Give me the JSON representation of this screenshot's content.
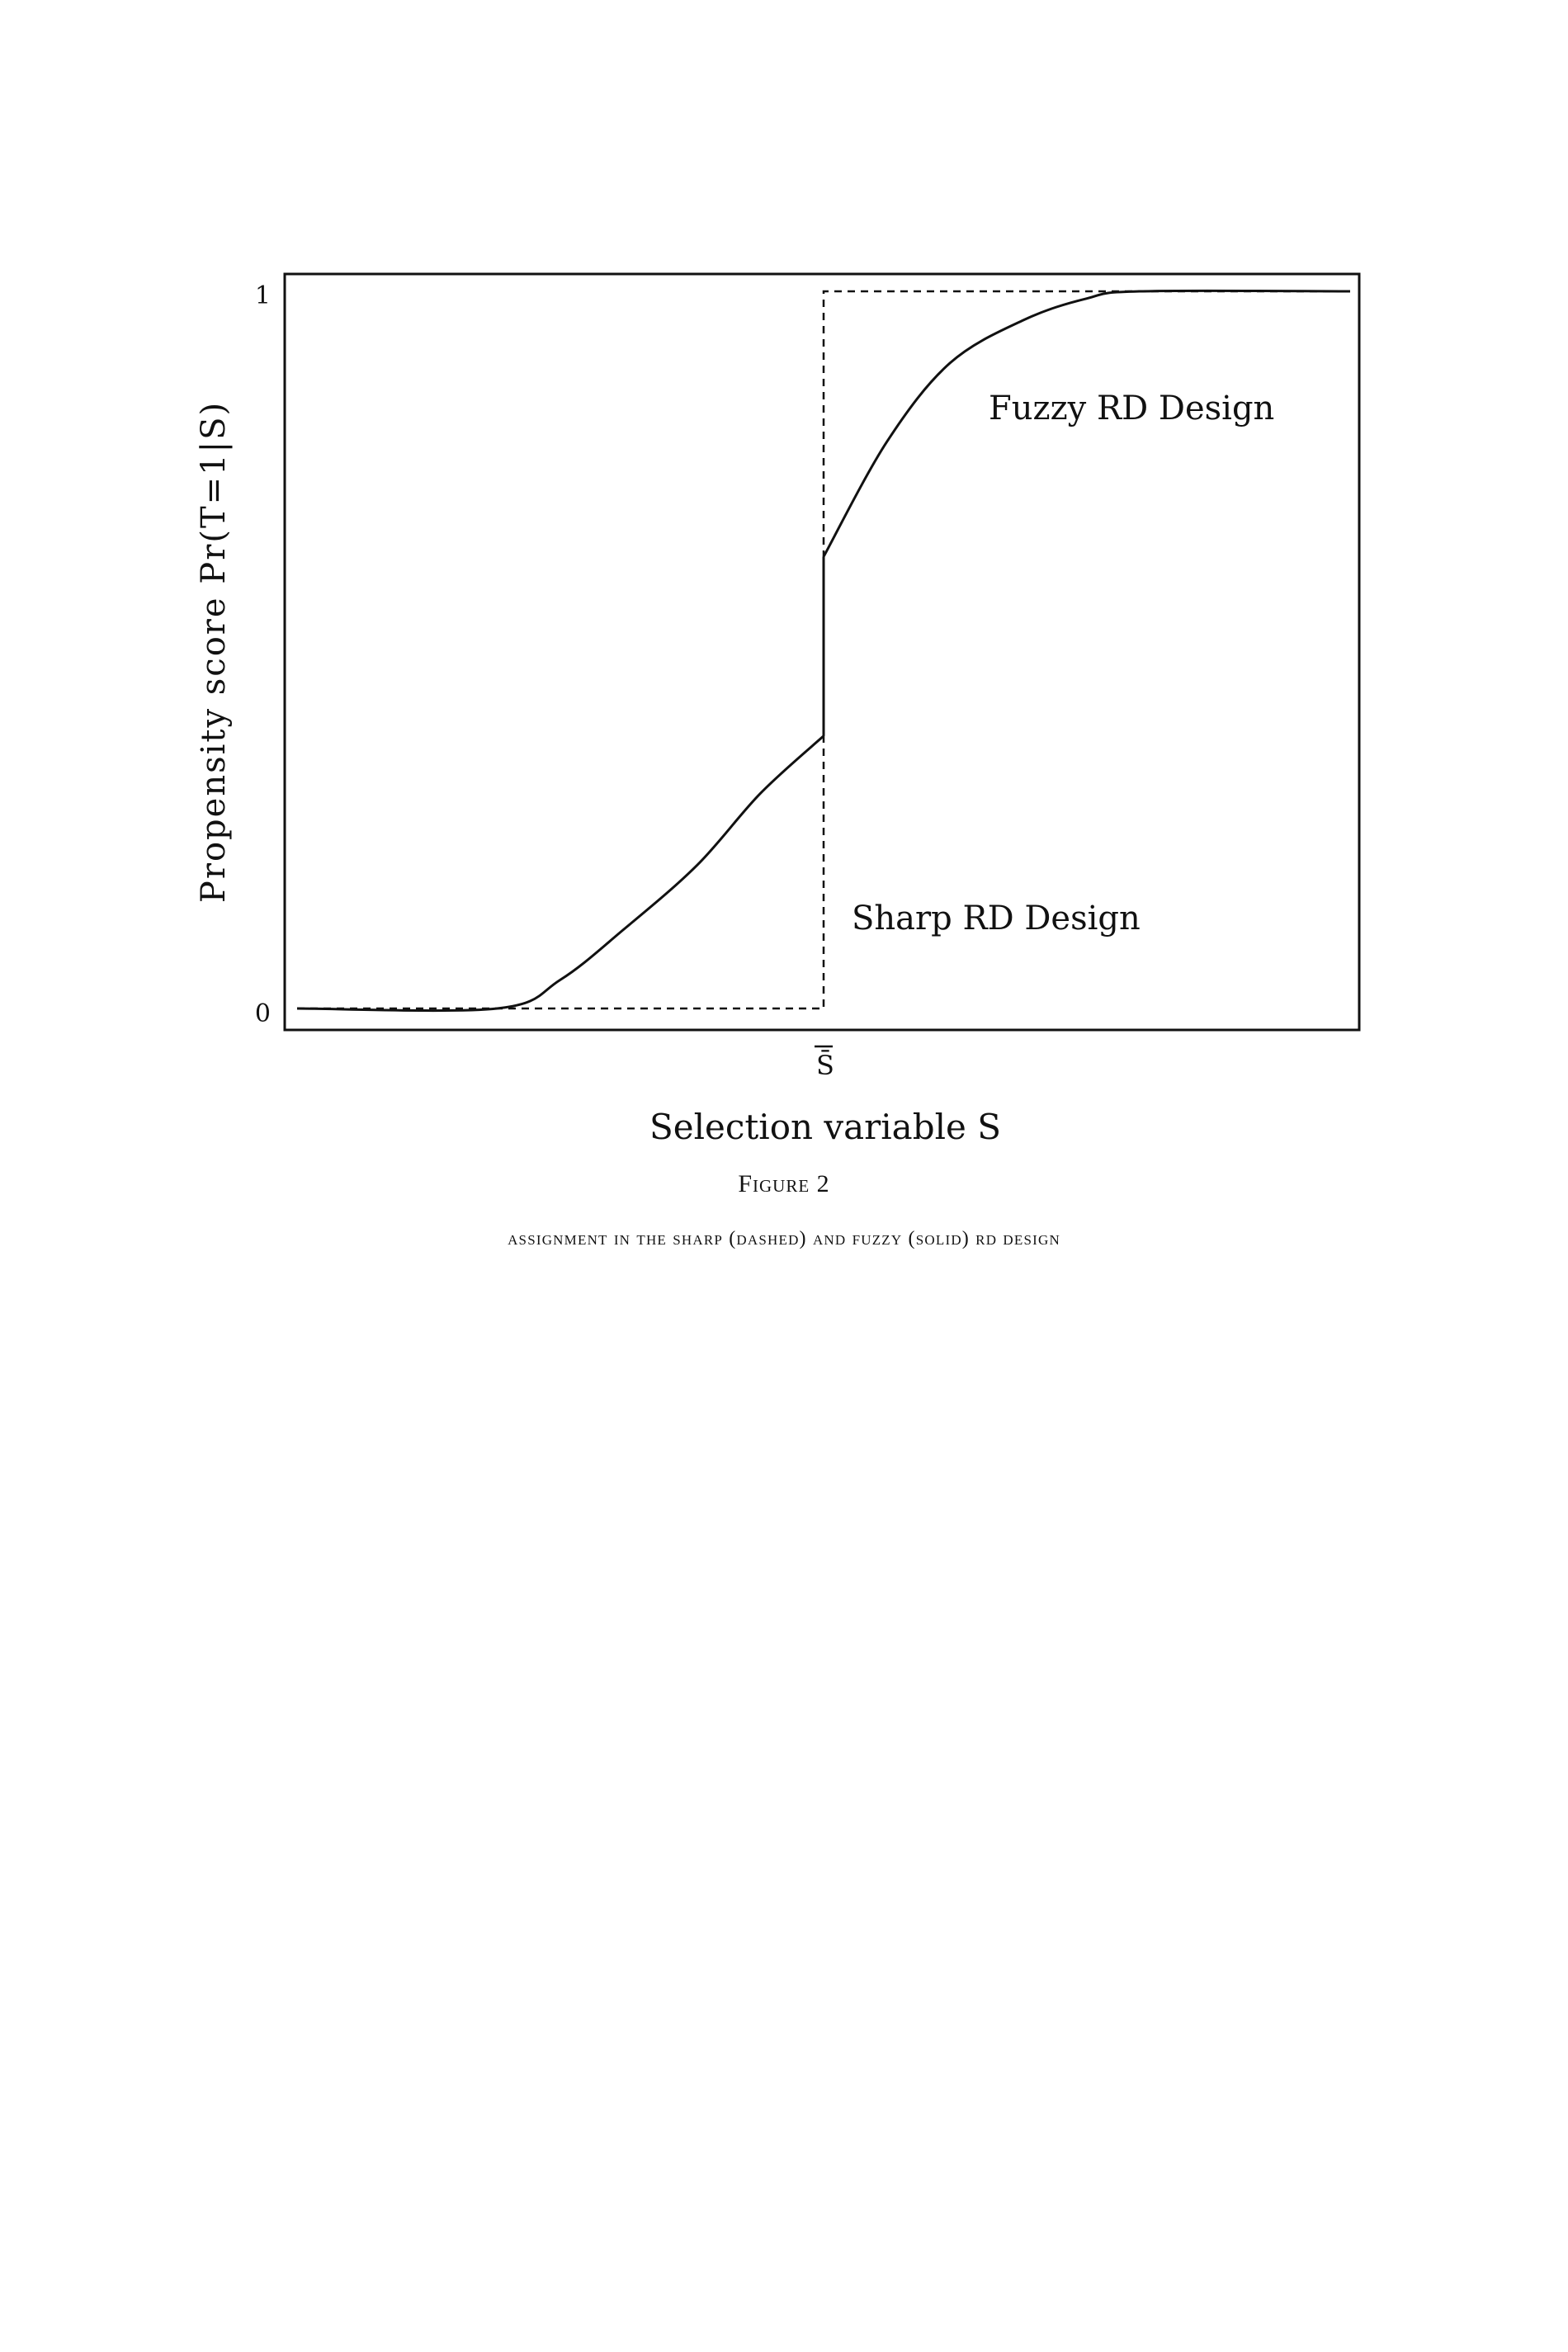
{
  "chart_data": {
    "type": "line",
    "ylabel": "Propensity score Pr(T=1|S)",
    "xlabel": "Selection variable S",
    "y_ticks": [
      "0",
      "1"
    ],
    "x_ticks": [
      "S̄"
    ],
    "ylim": [
      0,
      1
    ],
    "annotations": [
      "Fuzzy RD Design",
      "Sharp RD Design"
    ],
    "series": [
      {
        "style": "dashed",
        "x": [
          0.0,
          0.5,
          0.5,
          1.0
        ],
        "y": [
          0.0,
          0.0,
          1.0,
          1.0
        ]
      },
      {
        "style": "solid",
        "x": [
          0.0,
          0.19,
          0.25,
          0.31,
          0.38,
          0.44,
          0.5,
          0.5,
          0.56,
          0.62,
          0.69,
          0.75,
          0.8,
          1.0
        ],
        "y": [
          0.0,
          0.0,
          0.04,
          0.11,
          0.2,
          0.3,
          0.38,
          0.63,
          0.79,
          0.9,
          0.96,
          0.99,
          1.0,
          1.0
        ]
      }
    ]
  },
  "caption": {
    "title": "Figure 2",
    "text": "Assignment in the sharp (dashed) and fuzzy (solid) RD design"
  }
}
